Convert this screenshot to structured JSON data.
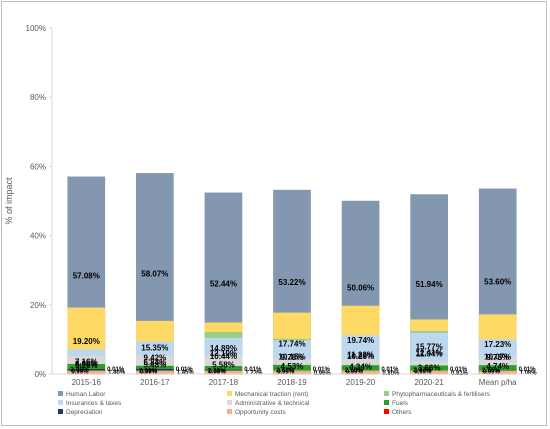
{
  "chart_data": {
    "type": "bar",
    "stacked": true,
    "title": "",
    "xlabel": "",
    "ylabel": "% of impact",
    "ylim": [
      0,
      100
    ],
    "yticks": [
      "0%",
      "20%",
      "40%",
      "60%",
      "80%",
      "100%"
    ],
    "grid": false,
    "legend_position": "bottom",
    "categories": [
      "2015-16",
      "2016-17",
      "2017-18",
      "2018-19",
      "2019-20",
      "2020-21",
      "Mean p/ha"
    ],
    "series": [
      {
        "name": "Human Labor",
        "color": "#8497b0",
        "values": [
          57.08,
          58.07,
          52.44,
          53.22,
          50.06,
          51.94,
          53.6
        ],
        "labels": [
          "57.08%",
          "58.07%",
          "52.44%",
          "53.22%",
          "50.06%",
          "51.94%",
          "53.60%"
        ]
      },
      {
        "name": "Mechanical traction (rent)",
        "color": "#ffd966",
        "values": [
          19.2,
          15.35,
          14.89,
          17.74,
          19.74,
          15.77,
          17.23
        ],
        "labels": [
          "19.20%",
          "15.35%",
          "14.89%",
          "17.74%",
          "19.74%",
          "15.77%",
          "17.23%"
        ]
      },
      {
        "name": "Phytopharmaceuticals & fertilisers",
        "color": "#92d083",
        "values": [
          6.0,
          6.84,
          12.1,
          10.15,
          10.29,
          12.41,
          9.73
        ],
        "labels": [
          "6.00%",
          "6.84%",
          "12.10%",
          "10.15%",
          "10.29%",
          "12.41%",
          "9.73%"
        ]
      },
      {
        "name": "Insurances & taxes",
        "color": "#bdd7ee",
        "values": [
          7.16,
          9.42,
          10.44,
          9.78,
          11.22,
          11.94,
          10.07
        ],
        "labels": [
          "7.16%",
          "9.42%",
          "10.44%",
          "9.78%",
          "11.22%",
          "11.94%",
          "10.07%"
        ]
      },
      {
        "name": "Administrative & technical",
        "color": "#d9d9d9",
        "values": [
          5.26,
          5.48,
          5.58,
          4.53,
          4.34,
          3.66,
          4.74
        ],
        "labels": [
          "5.26%",
          "5.48%",
          "5.58%",
          "4.53%",
          "4.34%",
          "3.66%",
          "4.74%"
        ]
      },
      {
        "name": "Fuels",
        "color": "#2ca02c",
        "values": [
          2.89,
          2.38,
          2.32,
          2.63,
          2.55,
          2.47,
          2.55
        ],
        "labels": [
          "2.89%",
          "2.38%",
          "2.32%",
          "2.63%",
          "2.55%",
          "2.47%",
          "2.55%"
        ]
      },
      {
        "name": "Depreciation",
        "color": "#1f3864",
        "values": [
          1.4,
          1.45,
          1.23,
          0.96,
          0.8,
          0.81,
          1.08
        ],
        "labels": [
          "1.40%",
          "1.45%",
          "1.23%",
          "0.96%",
          "0.80%",
          "0.81%",
          "1.08%"
        ]
      },
      {
        "name": "Opportunity costs",
        "color": "#f4b183",
        "values": [
          0.99,
          0.99,
          0.99,
          0.99,
          0.99,
          0.99,
          0.99
        ],
        "labels": [
          "0.99%",
          "0.99%",
          "0.99%",
          "0.99%",
          "0.99%",
          "0.99%",
          "0.99%"
        ]
      },
      {
        "name": "Others",
        "color": "#ff0000",
        "values": [
          0.01,
          0.01,
          0.01,
          0.01,
          0.01,
          0.01,
          0.01
        ],
        "labels": [
          "0.01%",
          "0.01%",
          "0.01%",
          "0.01%",
          "0.01%",
          "0.01%",
          "0.01%"
        ]
      }
    ]
  }
}
